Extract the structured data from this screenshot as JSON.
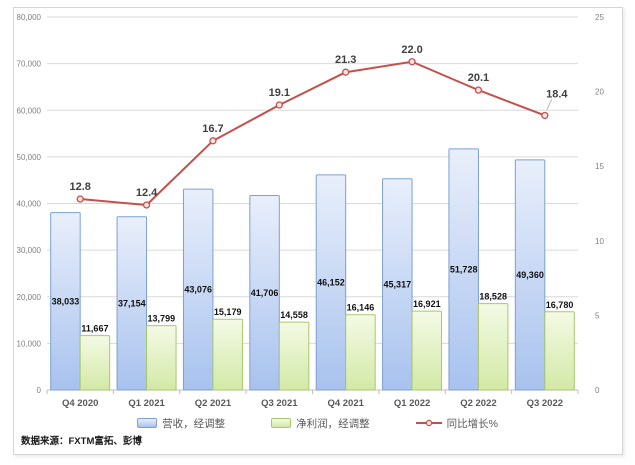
{
  "frame": {
    "footer": "数据来源：FXTM富拓、彭博"
  },
  "legend": {
    "items": [
      {
        "label": "营收，经调整",
        "swatch": "bar-blue"
      },
      {
        "label": "净利润，经调整",
        "swatch": "bar-green"
      },
      {
        "label": "同比增长%",
        "swatch": "line-red"
      }
    ]
  },
  "chart_data": {
    "type": "combo-bar-line",
    "categories": [
      "Q4 2020",
      "Q1 2021",
      "Q2 2021",
      "Q3 2021",
      "Q4 2021",
      "Q1 2022",
      "Q2 2022",
      "Q3 2022"
    ],
    "series": [
      {
        "name": "营收，经调整",
        "type": "bar",
        "axis": "left",
        "values": [
          38033,
          37154,
          43076,
          41706,
          46152,
          45317,
          51728,
          49360
        ],
        "labels": [
          "38,033",
          "37,154",
          "43,076",
          "41,706",
          "46,152",
          "45,317",
          "51,728",
          "49,360"
        ],
        "color_top": "#e9effb",
        "color_bottom": "#a8c2ee",
        "border_color": "#7ca0d4"
      },
      {
        "name": "净利润，经调整",
        "type": "bar",
        "axis": "left",
        "values": [
          11667,
          13799,
          15179,
          14558,
          16146,
          16921,
          18528,
          16780
        ],
        "labels": [
          "11,667",
          "13,799",
          "15,179",
          "14,558",
          "16,146",
          "16,921",
          "18,528",
          "16,780"
        ],
        "color_top": "#f4fae5",
        "color_bottom": "#d3e9a6",
        "border_color": "#a9c86d"
      },
      {
        "name": "同比增长%",
        "type": "line",
        "axis": "right",
        "values": [
          12.8,
          12.4,
          16.7,
          19.1,
          21.3,
          22.0,
          20.1,
          18.4
        ],
        "labels": [
          "12.8",
          "12.4",
          "16.7",
          "19.1",
          "21.3",
          "22.0",
          "20.1",
          "18.4"
        ],
        "color": "#c4504c"
      }
    ],
    "left_axis": {
      "min": 0,
      "max": 80000,
      "ticks": [
        "0",
        "10,000",
        "20,000",
        "30,000",
        "40,000",
        "50,000",
        "60,000",
        "70,000",
        "80,000"
      ]
    },
    "right_axis": {
      "min": 0,
      "max": 25,
      "ticks": [
        "0",
        "5",
        "10",
        "15",
        "20",
        "25"
      ]
    },
    "grid": true,
    "legend_position": "bottom",
    "colors": {
      "gridline": "#d9d9d9",
      "axis_line": "#bfbfbf",
      "axis_tick_label": "#808080",
      "category_label": "#595959",
      "bar_label": "#111111",
      "line_label": "#3f3f3f",
      "line": "#c4504c",
      "marker_fill": "#f6e3e2"
    }
  }
}
